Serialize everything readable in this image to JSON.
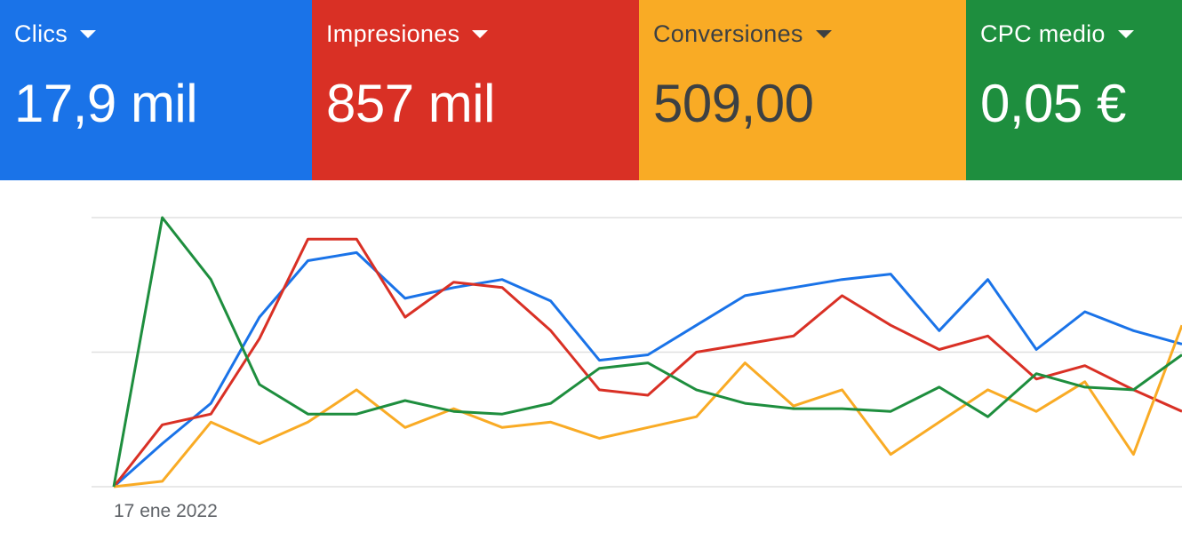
{
  "cards": [
    {
      "label": "Clics",
      "value": "17,9 mil",
      "bg": "#1a73e8",
      "fg": "#ffffff"
    },
    {
      "label": "Impresiones",
      "value": "857 mil",
      "bg": "#d93025",
      "fg": "#ffffff"
    },
    {
      "label": "Conversiones",
      "value": "509,00",
      "bg": "#f9ab25",
      "fg": "#3c4043"
    },
    {
      "label": "CPC medio",
      "value": "0,05 €",
      "bg": "#1e8e3e",
      "fg": "#ffffff"
    }
  ],
  "chart_data": {
    "type": "line",
    "x_label_first": "17 ene 2022",
    "ylim": [
      0,
      100
    ],
    "grid": true,
    "series": [
      {
        "color": "#1a73e8",
        "values": [
          0,
          16,
          31,
          63,
          84,
          87,
          70,
          74,
          77,
          69,
          47,
          49,
          60,
          71,
          74,
          77,
          79,
          58,
          77,
          51,
          65,
          58,
          53
        ]
      },
      {
        "color": "#d93025",
        "values": [
          0,
          23,
          27,
          55,
          92,
          92,
          63,
          76,
          74,
          58,
          36,
          34,
          50,
          53,
          56,
          71,
          60,
          51,
          56,
          40,
          45,
          36,
          28
        ]
      },
      {
        "color": "#f9ab25",
        "values": [
          0,
          2,
          24,
          16,
          24,
          36,
          22,
          29,
          22,
          24,
          18,
          22,
          26,
          46,
          30,
          36,
          12,
          24,
          36,
          28,
          39,
          12,
          60
        ]
      },
      {
        "color": "#1e8e3e",
        "values": [
          0,
          100,
          77,
          38,
          27,
          27,
          32,
          28,
          27,
          31,
          44,
          46,
          36,
          31,
          29,
          29,
          28,
          37,
          26,
          42,
          37,
          36,
          49
        ]
      }
    ]
  }
}
